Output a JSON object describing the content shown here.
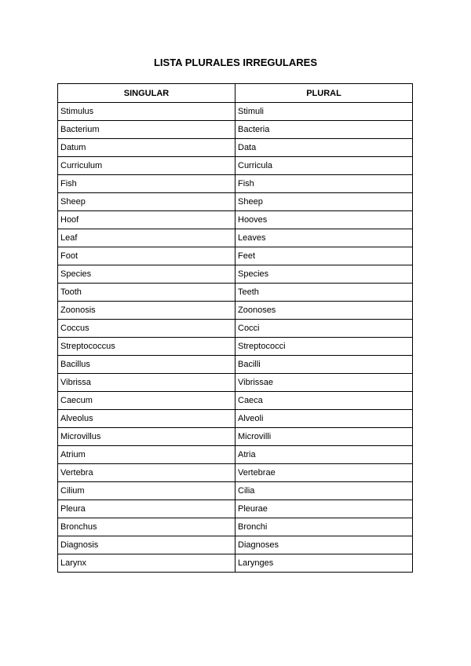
{
  "title": "LISTA PLURALES IRREGULARES",
  "headers": [
    "SINGULAR",
    "PLURAL"
  ],
  "rows": [
    [
      "Stimulus",
      "Stimuli"
    ],
    [
      "Bacterium",
      "Bacteria"
    ],
    [
      "Datum",
      "Data"
    ],
    [
      "Curriculum",
      "Curricula"
    ],
    [
      "Fish",
      "Fish"
    ],
    [
      "Sheep",
      "Sheep"
    ],
    [
      "Hoof",
      "Hooves"
    ],
    [
      "Leaf",
      "Leaves"
    ],
    [
      "Foot",
      "Feet"
    ],
    [
      "Species",
      "Species"
    ],
    [
      "Tooth",
      "Teeth"
    ],
    [
      "Zoonosis",
      "Zoonoses"
    ],
    [
      "Coccus",
      "Cocci"
    ],
    [
      "Streptococcus",
      "Streptococci"
    ],
    [
      "Bacillus",
      "Bacilli"
    ],
    [
      "Vibrissa",
      "Vibrissae"
    ],
    [
      "Caecum",
      "Caeca"
    ],
    [
      "Alveolus",
      "Alveoli"
    ],
    [
      "Microvillus",
      "Microvilli"
    ],
    [
      "Atrium",
      "Atria"
    ],
    [
      "Vertebra",
      "Vertebrae"
    ],
    [
      "Cilium",
      "Cilia"
    ],
    [
      "Pleura",
      "Pleurae"
    ],
    [
      "Bronchus",
      "Bronchi"
    ],
    [
      "Diagnosis",
      "Diagnoses"
    ],
    [
      "Larynx",
      "Larynges"
    ]
  ]
}
